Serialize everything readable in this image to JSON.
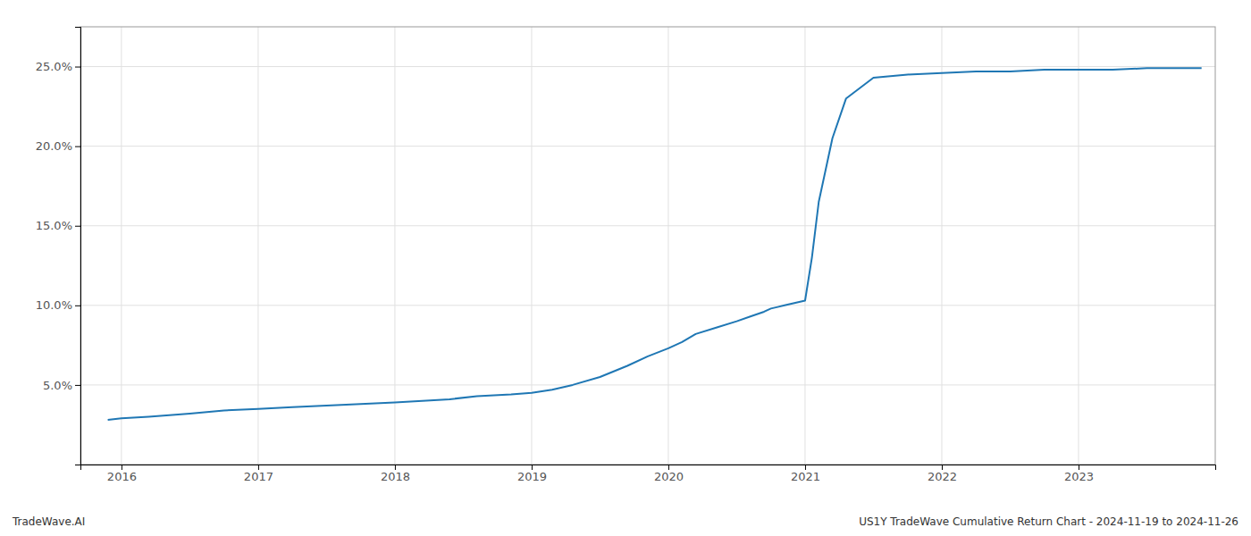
{
  "chart_data": {
    "type": "line",
    "x": [
      2015.9,
      2016.0,
      2016.2,
      2016.5,
      2016.75,
      2017.0,
      2017.25,
      2017.5,
      2017.75,
      2018.0,
      2018.2,
      2018.4,
      2018.6,
      2018.85,
      2019.0,
      2019.15,
      2019.3,
      2019.5,
      2019.7,
      2019.85,
      2020.0,
      2020.1,
      2020.2,
      2020.35,
      2020.5,
      2020.6,
      2020.7,
      2020.75,
      2020.8,
      2020.85,
      2020.9,
      2020.95,
      2021.0,
      2021.05,
      2021.1,
      2021.2,
      2021.3,
      2021.5,
      2021.75,
      2022.0,
      2022.25,
      2022.5,
      2022.75,
      2023.0,
      2023.25,
      2023.5,
      2023.75,
      2023.9
    ],
    "values": [
      0.028,
      0.029,
      0.03,
      0.032,
      0.034,
      0.035,
      0.036,
      0.037,
      0.038,
      0.039,
      0.04,
      0.041,
      0.043,
      0.044,
      0.045,
      0.047,
      0.05,
      0.055,
      0.062,
      0.068,
      0.073,
      0.077,
      0.082,
      0.086,
      0.09,
      0.093,
      0.096,
      0.098,
      0.099,
      0.1,
      0.101,
      0.102,
      0.103,
      0.13,
      0.165,
      0.205,
      0.23,
      0.243,
      0.245,
      0.246,
      0.247,
      0.247,
      0.248,
      0.248,
      0.248,
      0.249,
      0.249,
      0.249
    ],
    "color": "#1f77b4",
    "xlim": [
      2015.7,
      2024.0
    ],
    "ylim": [
      0.0,
      0.275
    ],
    "xticks": [
      2016,
      2017,
      2018,
      2019,
      2020,
      2021,
      2022,
      2023
    ],
    "yticks": [
      {
        "value": 0.05,
        "label": "5.0%"
      },
      {
        "value": 0.1,
        "label": "10.0%"
      },
      {
        "value": 0.15,
        "label": "15.0%"
      },
      {
        "value": 0.2,
        "label": "20.0%"
      },
      {
        "value": 0.25,
        "label": "25.0%"
      }
    ],
    "grid": true,
    "annotations": [
      "TradeWave.AI",
      "US1Y TradeWave Cumulative Return Chart - 2024-11-19 to 2024-11-26"
    ]
  }
}
